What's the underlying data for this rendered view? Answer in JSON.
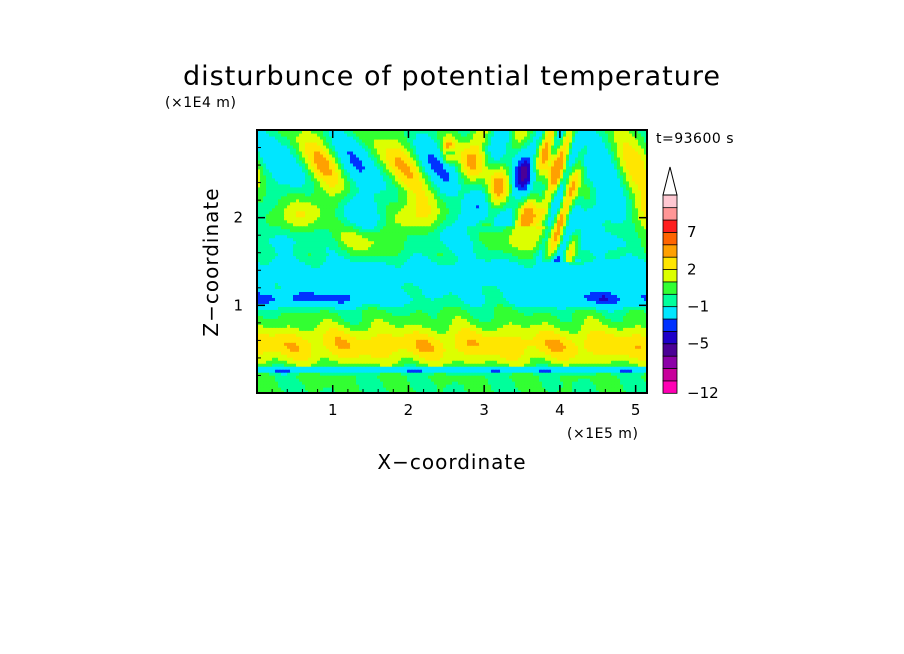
{
  "chart_data": {
    "type": "heatmap",
    "title": "disturbunce of potential temperature",
    "xlabel": "X−coordinate",
    "ylabel": "Z−coordinate",
    "x_unit": "(×1E5 m)",
    "y_unit": "(×1E4 m)",
    "time_label": "t=93600 s",
    "xlim": [
      0,
      5.15
    ],
    "ylim": [
      0,
      3.0
    ],
    "x_ticks": [
      "1",
      "2",
      "3",
      "4",
      "5"
    ],
    "x_tick_values": [
      1,
      2,
      3,
      4,
      5
    ],
    "y_ticks": [
      "1",
      "2"
    ],
    "y_tick_values": [
      1,
      2
    ],
    "colorbar": {
      "labels": [
        "7",
        "2",
        "−1",
        "−5",
        "−12"
      ],
      "label_values": [
        7,
        2,
        -1,
        -5,
        -12
      ],
      "levels": [
        -12,
        -11,
        -9,
        -7,
        -5,
        -4,
        -3,
        -1,
        0,
        1,
        2,
        3,
        5,
        7,
        8,
        9
      ],
      "extend": "max",
      "colors": [
        "#ff00b4",
        "#c8009b",
        "#8c00a8",
        "#4b0096",
        "#1e00c8",
        "#0032ff",
        "#00e6ff",
        "#00ff9b",
        "#32ff32",
        "#dcff00",
        "#ffe600",
        "#ffa000",
        "#ff6400",
        "#ff1e1e",
        "#ff9696",
        "#ffc8d2"
      ]
    },
    "grid": false,
    "legend": "colorbar-right"
  }
}
